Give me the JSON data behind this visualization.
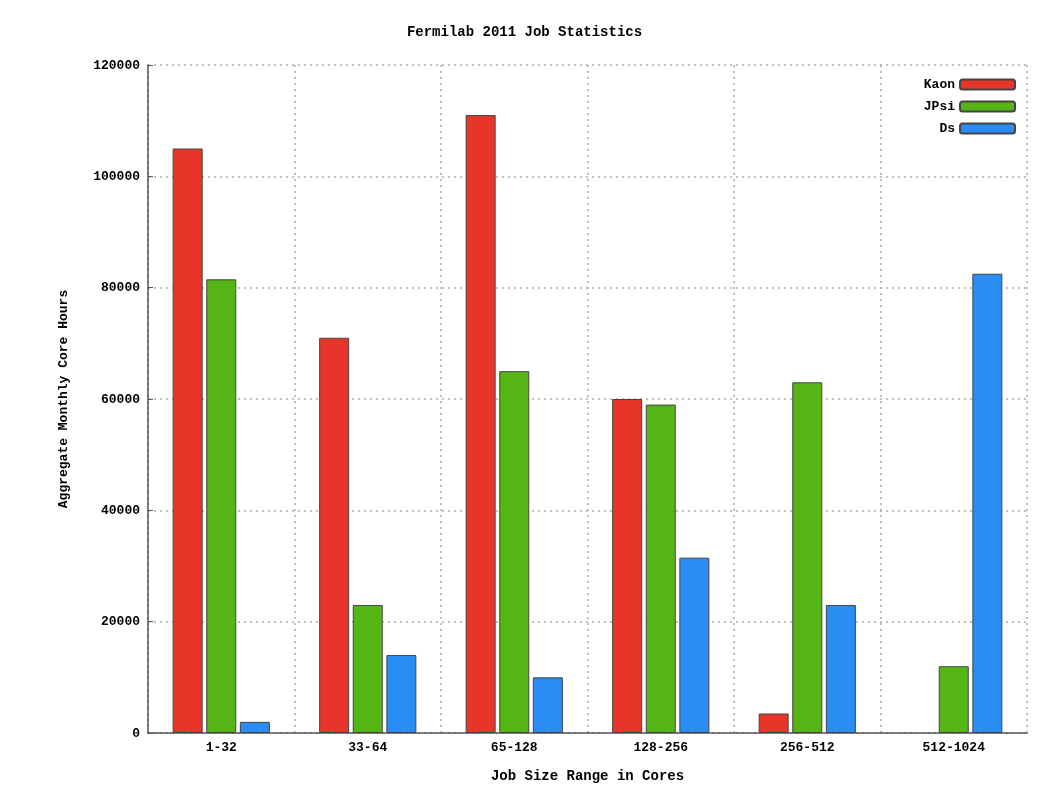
{
  "chart_data": {
    "type": "bar",
    "title": "Fermilab 2011 Job Statistics",
    "xlabel": "Job Size Range in Cores",
    "ylabel": "Aggregate Monthly Core Hours",
    "categories": [
      "1-32",
      "33-64",
      "65-128",
      "128-256",
      "256-512",
      "512-1024"
    ],
    "series": [
      {
        "name": "Kaon",
        "color": "#e8352a",
        "values": [
          105000,
          71000,
          111000,
          60000,
          3500,
          null
        ]
      },
      {
        "name": "JPsi",
        "color": "#55b514",
        "values": [
          81500,
          23000,
          65000,
          59000,
          63000,
          12000
        ]
      },
      {
        "name": "Ds",
        "color": "#2a8cf5",
        "values": [
          2000,
          14000,
          10000,
          31500,
          23000,
          82500
        ]
      }
    ],
    "ylim": [
      0,
      120000
    ],
    "yticks": [
      0,
      20000,
      40000,
      60000,
      80000,
      100000,
      120000
    ],
    "grid": true,
    "legend": "top right"
  }
}
